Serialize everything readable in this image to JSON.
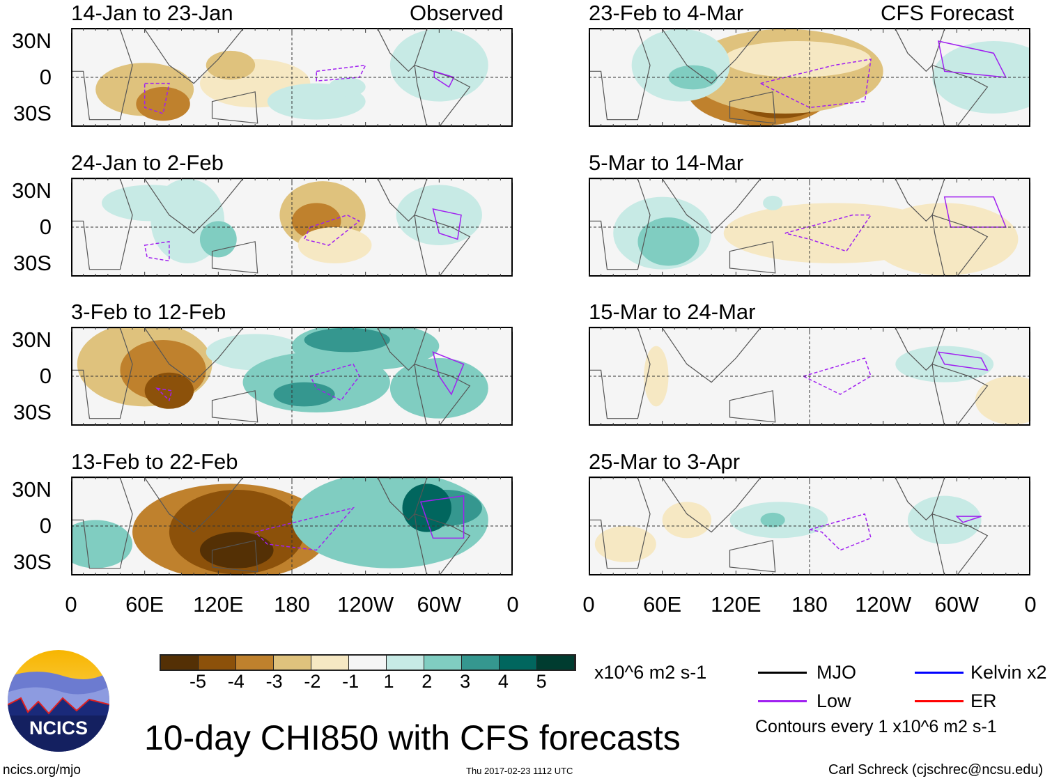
{
  "headers": {
    "observed": "Observed",
    "forecast": "CFS Forecast"
  },
  "panels": [
    {
      "title": "14-Jan to 23-Jan",
      "column": "observed"
    },
    {
      "title": "24-Jan to 2-Feb",
      "column": "observed"
    },
    {
      "title": "3-Feb to 12-Feb",
      "column": "observed"
    },
    {
      "title": "13-Feb to 22-Feb",
      "column": "observed"
    },
    {
      "title": "23-Feb to 4-Mar",
      "column": "forecast"
    },
    {
      "title": "5-Mar to 14-Mar",
      "column": "forecast"
    },
    {
      "title": "15-Mar to 24-Mar",
      "column": "forecast"
    },
    {
      "title": "25-Mar to 3-Apr",
      "column": "forecast"
    }
  ],
  "chart_data": {
    "type": "heatmap",
    "title": "10-day CHI850 with CFS forecasts",
    "y_ticks": [
      "30N",
      "0",
      "30S"
    ],
    "x_ticks": [
      "0",
      "60E",
      "120E",
      "180",
      "120W",
      "60W",
      "0"
    ],
    "colorbar": {
      "labels": [
        "-5",
        "-4",
        "-3",
        "-2",
        "-1",
        "1",
        "2",
        "3",
        "4",
        "5"
      ],
      "colors": [
        "#543005",
        "#8c510a",
        "#bf812d",
        "#dfc27d",
        "#f6e8c3",
        "#f5f5f5",
        "#c7eae5",
        "#80cdc1",
        "#35978f",
        "#01665e",
        "#003c30"
      ],
      "units": "x10^6 m2 s-1"
    },
    "legend": [
      {
        "label": "MJO",
        "color": "#000000"
      },
      {
        "label": "Kelvin x2",
        "color": "#0000ff"
      },
      {
        "label": "Low",
        "color": "#a020f0"
      },
      {
        "label": "ER",
        "color": "#ff0000"
      }
    ],
    "contour_note": "Contours every 1 x10^6 m2 s-1"
  },
  "footer": {
    "logo_text": "NCICS",
    "url": "ncics.org/mjo",
    "timestamp": "Thu 2017-02-23 1112 UTC",
    "author": "Carl Schreck (cjschrec@ncsu.edu)"
  }
}
